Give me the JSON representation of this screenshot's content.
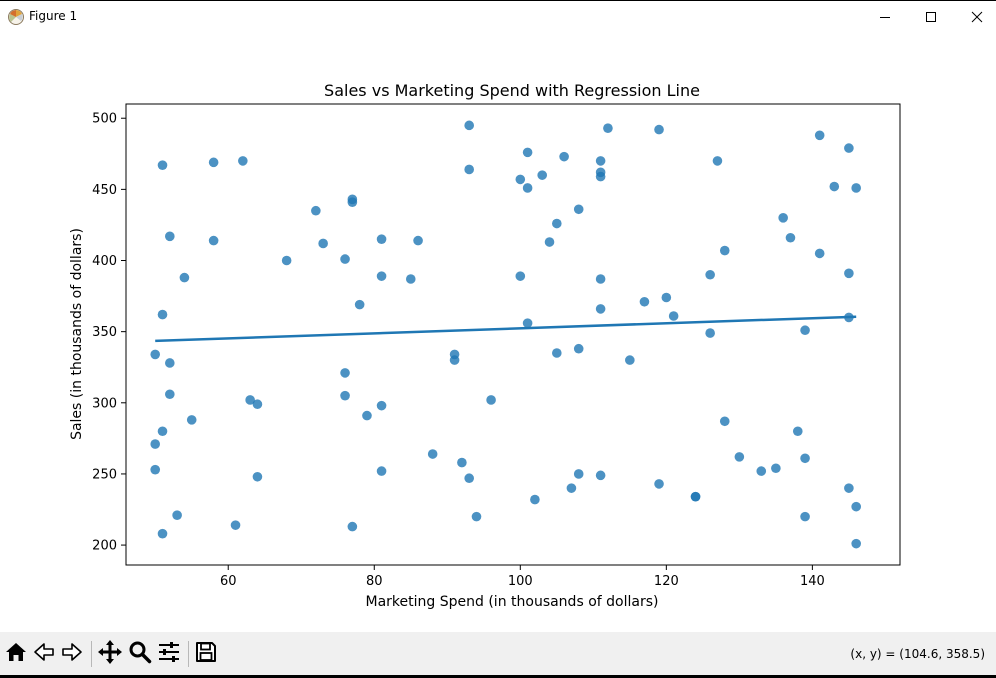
{
  "window": {
    "title": "Figure 1",
    "icon": "matplotlib-logo-icon"
  },
  "window_controls": [
    "minimize-icon",
    "maximize-icon",
    "close-icon"
  ],
  "toolbar": {
    "buttons": [
      "home-icon",
      "back-icon",
      "forward-icon",
      "pan-icon",
      "zoom-icon",
      "configure-subplots-icon",
      "save-icon"
    ],
    "coords_text": "(x, y) = (104.6, 358.5)"
  },
  "colors": {
    "point": "#1f77b4",
    "line": "#1f77b4"
  },
  "chart_data": {
    "type": "scatter",
    "title": "Sales vs Marketing Spend with Regression Line",
    "xlabel": "Marketing Spend (in thousands of dollars)",
    "ylabel": "Sales (in thousands of dollars)",
    "xlim": [
      46,
      152
    ],
    "ylim": [
      186,
      510
    ],
    "xticks": [
      60,
      80,
      100,
      120,
      140
    ],
    "yticks": [
      200,
      250,
      300,
      350,
      400,
      450,
      500
    ],
    "grid": false,
    "points": [
      [
        50,
        334
      ],
      [
        50,
        271
      ],
      [
        50,
        253
      ],
      [
        51,
        467
      ],
      [
        51,
        362
      ],
      [
        51,
        280
      ],
      [
        51,
        208
      ],
      [
        52,
        417
      ],
      [
        52,
        328
      ],
      [
        52,
        306
      ],
      [
        53,
        221
      ],
      [
        54,
        388
      ],
      [
        55,
        288
      ],
      [
        58,
        469
      ],
      [
        58,
        414
      ],
      [
        61,
        214
      ],
      [
        62,
        470
      ],
      [
        63,
        302
      ],
      [
        64,
        299
      ],
      [
        64,
        248
      ],
      [
        68,
        400
      ],
      [
        72,
        435
      ],
      [
        73,
        412
      ],
      [
        76,
        401
      ],
      [
        76,
        321
      ],
      [
        76,
        305
      ],
      [
        77,
        443
      ],
      [
        77,
        441
      ],
      [
        77,
        213
      ],
      [
        78,
        369
      ],
      [
        79,
        291
      ],
      [
        81,
        415
      ],
      [
        81,
        389
      ],
      [
        81,
        298
      ],
      [
        81,
        252
      ],
      [
        85,
        387
      ],
      [
        86,
        414
      ],
      [
        88,
        264
      ],
      [
        91,
        334
      ],
      [
        91,
        330
      ],
      [
        92,
        258
      ],
      [
        93,
        495
      ],
      [
        93,
        464
      ],
      [
        93,
        247
      ],
      [
        94,
        220
      ],
      [
        96,
        302
      ],
      [
        100,
        457
      ],
      [
        100,
        389
      ],
      [
        101,
        476
      ],
      [
        101,
        451
      ],
      [
        101,
        356
      ],
      [
        102,
        232
      ],
      [
        103,
        460
      ],
      [
        104,
        413
      ],
      [
        105,
        426
      ],
      [
        105,
        335
      ],
      [
        106,
        473
      ],
      [
        107,
        240
      ],
      [
        108,
        436
      ],
      [
        108,
        338
      ],
      [
        108,
        250
      ],
      [
        111,
        470
      ],
      [
        111,
        462
      ],
      [
        111,
        459
      ],
      [
        111,
        387
      ],
      [
        111,
        366
      ],
      [
        111,
        249
      ],
      [
        112,
        493
      ],
      [
        115,
        330
      ],
      [
        117,
        371
      ],
      [
        119,
        492
      ],
      [
        119,
        243
      ],
      [
        120,
        374
      ],
      [
        121,
        361
      ],
      [
        124,
        234
      ],
      [
        124,
        234
      ],
      [
        126,
        390
      ],
      [
        126,
        349
      ],
      [
        127,
        470
      ],
      [
        128,
        407
      ],
      [
        128,
        287
      ],
      [
        130,
        262
      ],
      [
        133,
        252
      ],
      [
        135,
        254
      ],
      [
        136,
        430
      ],
      [
        137,
        416
      ],
      [
        138,
        280
      ],
      [
        139,
        351
      ],
      [
        139,
        261
      ],
      [
        139,
        220
      ],
      [
        141,
        488
      ],
      [
        141,
        405
      ],
      [
        143,
        452
      ],
      [
        145,
        479
      ],
      [
        145,
        391
      ],
      [
        145,
        360
      ],
      [
        145,
        240
      ],
      [
        146,
        451
      ],
      [
        146,
        227
      ],
      [
        146,
        201
      ]
    ],
    "regression": {
      "x": [
        50,
        146
      ],
      "y": [
        343.5,
        360.5
      ]
    }
  }
}
